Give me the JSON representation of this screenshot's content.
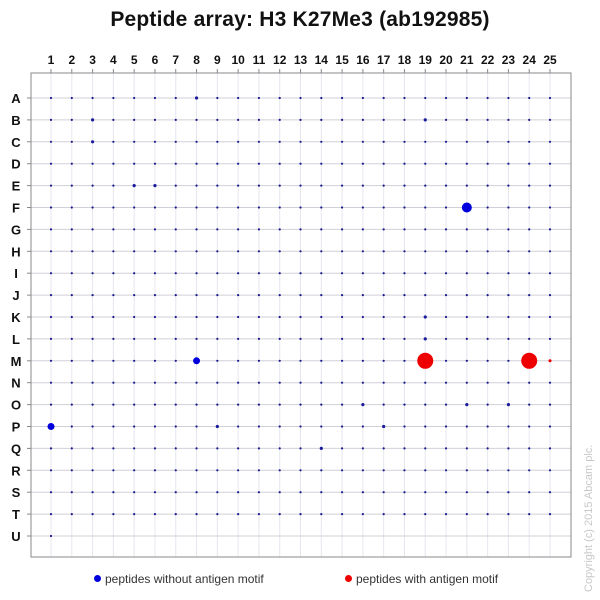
{
  "chart_data": {
    "type": "scatter",
    "title": "Peptide array:  H3 K27Me3 (ab192985)",
    "xlabel": "",
    "ylabel": "",
    "x_tick_labels": [
      "1",
      "2",
      "3",
      "4",
      "5",
      "6",
      "7",
      "8",
      "9",
      "10",
      "11",
      "12",
      "13",
      "14",
      "15",
      "16",
      "17",
      "18",
      "19",
      "20",
      "21",
      "22",
      "23",
      "24",
      "25"
    ],
    "y_tick_labels": [
      "A",
      "B",
      "C",
      "D",
      "E",
      "F",
      "G",
      "H",
      "I",
      "J",
      "K",
      "L",
      "M",
      "N",
      "O",
      "P",
      "Q",
      "R",
      "S",
      "T",
      "U"
    ],
    "grid": true,
    "legend_position": "bottom",
    "layout": {
      "rows": 21,
      "cols": 25,
      "last_row_cols": 1
    },
    "default_spot": {
      "color": "#1a1a8c",
      "size": 1
    },
    "series": [
      {
        "name": "peptides without antigen motif",
        "color": "#0000dd",
        "strong_spots": [
          {
            "row": "F",
            "col": 21,
            "size": 5
          },
          {
            "row": "M",
            "col": 8,
            "size": 3.5
          },
          {
            "row": "P",
            "col": 1,
            "size": 3.5
          }
        ],
        "medium_spots": [
          {
            "row": "A",
            "col": 8
          },
          {
            "row": "B",
            "col": 3
          },
          {
            "row": "C",
            "col": 3
          },
          {
            "row": "E",
            "col": 5
          },
          {
            "row": "E",
            "col": 6
          },
          {
            "row": "B",
            "col": 19
          },
          {
            "row": "K",
            "col": 19
          },
          {
            "row": "L",
            "col": 19
          },
          {
            "row": "O",
            "col": 16
          },
          {
            "row": "O",
            "col": 21
          },
          {
            "row": "O",
            "col": 23
          },
          {
            "row": "P",
            "col": 9
          },
          {
            "row": "P",
            "col": 17
          },
          {
            "row": "Q",
            "col": 14
          }
        ]
      },
      {
        "name": "peptides with antigen motif",
        "color": "#ee0000",
        "spots": [
          {
            "row": "M",
            "col": 19,
            "size": 8
          },
          {
            "row": "M",
            "col": 24,
            "size": 8
          },
          {
            "row": "M",
            "col": 25,
            "size": 1.5
          }
        ]
      }
    ]
  },
  "legend": {
    "items": [
      {
        "label": "peptides without antigen motif",
        "color": "#0000dd"
      },
      {
        "label": "peptides with antigen motif",
        "color": "#ee0000"
      }
    ]
  },
  "copyright": "Copyright (c) 2015 Abcam plc."
}
